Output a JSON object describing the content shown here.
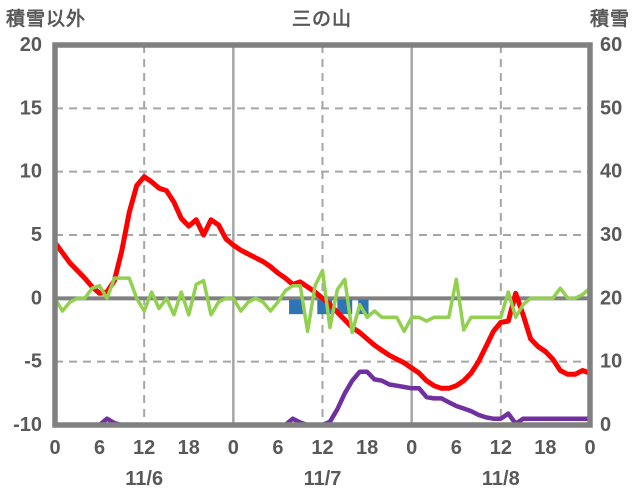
{
  "header": {
    "left_axis_title": "積雪以外",
    "chart_title": "三の山",
    "right_axis_title": "積雪"
  },
  "chart_data": {
    "type": "line",
    "title": "三の山",
    "left_axis_label": "積雪以外",
    "right_axis_label": "積雪",
    "x_hours_total": 72,
    "x_tick_hours": [
      0,
      6,
      12,
      18,
      24,
      30,
      36,
      42,
      48,
      54,
      60,
      66,
      72
    ],
    "x_tick_labels": [
      "0",
      "6",
      "12",
      "18",
      "0",
      "6",
      "12",
      "18",
      "0",
      "6",
      "12",
      "18",
      "0"
    ],
    "date_label_hours": [
      12,
      36,
      60
    ],
    "date_labels": [
      "11/6",
      "11/7",
      "11/8"
    ],
    "left_axis": {
      "min": -10,
      "max": 20,
      "ticks": [
        20,
        15,
        10,
        5,
        0,
        -5,
        -10
      ],
      "dashed_gridlines": [
        15,
        10,
        5,
        -5
      ],
      "solid_gridlines": [
        0
      ]
    },
    "right_axis": {
      "min": 0,
      "max": 60,
      "ticks": [
        60,
        50,
        40,
        30,
        20,
        10,
        0
      ]
    },
    "vertical_solid_gridline_hours": [
      24,
      48
    ],
    "vertical_dashed_gridline_hours": [
      12,
      36,
      60
    ],
    "grid": true,
    "legend_position": "none",
    "series": [
      {
        "name": "red-series",
        "color": "#ff0000",
        "width": 5,
        "axis": "left",
        "values": [
          4.4,
          3.6,
          2.8,
          2.2,
          1.6,
          0.9,
          0.4,
          0.5,
          1.4,
          3.8,
          6.8,
          8.9,
          9.6,
          9.2,
          8.7,
          8.5,
          7.6,
          6.3,
          5.7,
          6.2,
          5.0,
          6.2,
          5.8,
          4.7,
          4.2,
          3.8,
          3.5,
          3.2,
          2.9,
          2.5,
          2.0,
          1.6,
          1.1,
          1.3,
          0.9,
          0.5,
          0.0,
          -0.5,
          -1.1,
          -1.7,
          -2.3,
          -2.7,
          -3.2,
          -3.7,
          -4.1,
          -4.5,
          -4.8,
          -5.1,
          -5.5,
          -5.9,
          -6.5,
          -6.9,
          -7.1,
          -7.1,
          -6.9,
          -6.5,
          -5.9,
          -5.0,
          -3.8,
          -2.6,
          -1.9,
          -1.8,
          0.4,
          -1.3,
          -3.2,
          -3.8,
          -4.2,
          -4.8,
          -5.7,
          -6.0,
          -6.0,
          -5.7,
          -5.9
        ]
      },
      {
        "name": "green-series",
        "color": "#92d050",
        "width": 3.5,
        "axis": "left",
        "values": [
          0,
          -1,
          -0.3,
          0,
          0,
          0.8,
          1,
          0,
          1.6,
          1.6,
          1.6,
          0,
          -1,
          0.5,
          -0.8,
          0,
          -1.3,
          0.5,
          -1.3,
          1.1,
          1.4,
          -1.3,
          -0.3,
          0,
          0,
          -1,
          -0.3,
          0,
          -0.3,
          -1,
          -0.3,
          0.6,
          1,
          1,
          -2.6,
          1,
          2.2,
          -2.3,
          0.7,
          1.5,
          -2.7,
          -0.5,
          -1.5,
          -1,
          -1.5,
          -1.5,
          -1.5,
          -2.6,
          -1.5,
          -1.5,
          -1.8,
          -1.5,
          -1.5,
          -1.5,
          1.5,
          -2.5,
          -1.5,
          -1.5,
          -1.5,
          -1.5,
          -1.5,
          0.5,
          -1.5,
          -0.5,
          0,
          0,
          0,
          0,
          0.8,
          0,
          0,
          0.3,
          0.8
        ]
      },
      {
        "name": "purple-series",
        "color": "#7030a0",
        "width": 4.5,
        "axis": "right",
        "values": [
          0,
          0,
          0,
          0,
          0,
          0,
          0,
          1,
          0.3,
          0,
          0,
          0,
          0,
          0,
          0,
          0,
          0,
          0,
          0,
          0,
          0,
          0,
          0,
          0,
          0,
          0,
          0,
          0,
          0,
          0,
          0,
          0,
          1,
          0.4,
          0,
          0,
          0,
          0.5,
          2.5,
          5,
          7,
          8.4,
          8.4,
          7.2,
          7,
          6.4,
          6.2,
          6,
          5.8,
          5.8,
          4.4,
          4.2,
          4.2,
          3.6,
          3.0,
          2.6,
          2.2,
          1.6,
          1.2,
          1.0,
          1.0,
          1.8,
          0.2,
          1.0,
          1.0,
          1.0,
          1.0,
          1.0,
          1.0,
          1.0,
          1.0,
          1.0,
          1.0
        ]
      }
    ],
    "event_markers": {
      "name": "blue-marker",
      "color": "#2e75b6",
      "spans_hours": [
        [
          31.5,
          33.5
        ],
        [
          35.3,
          37.3
        ],
        [
          38.0,
          40.0
        ],
        [
          40.8,
          42.2
        ]
      ],
      "value_top_left_axis": -0.1,
      "value_bottom_left_axis": -1.25
    }
  },
  "colors": {
    "frame": "#808080",
    "grid": "#a6a6a6",
    "zero_line": "#808080",
    "text": "#595959",
    "background": "#ffffff"
  }
}
